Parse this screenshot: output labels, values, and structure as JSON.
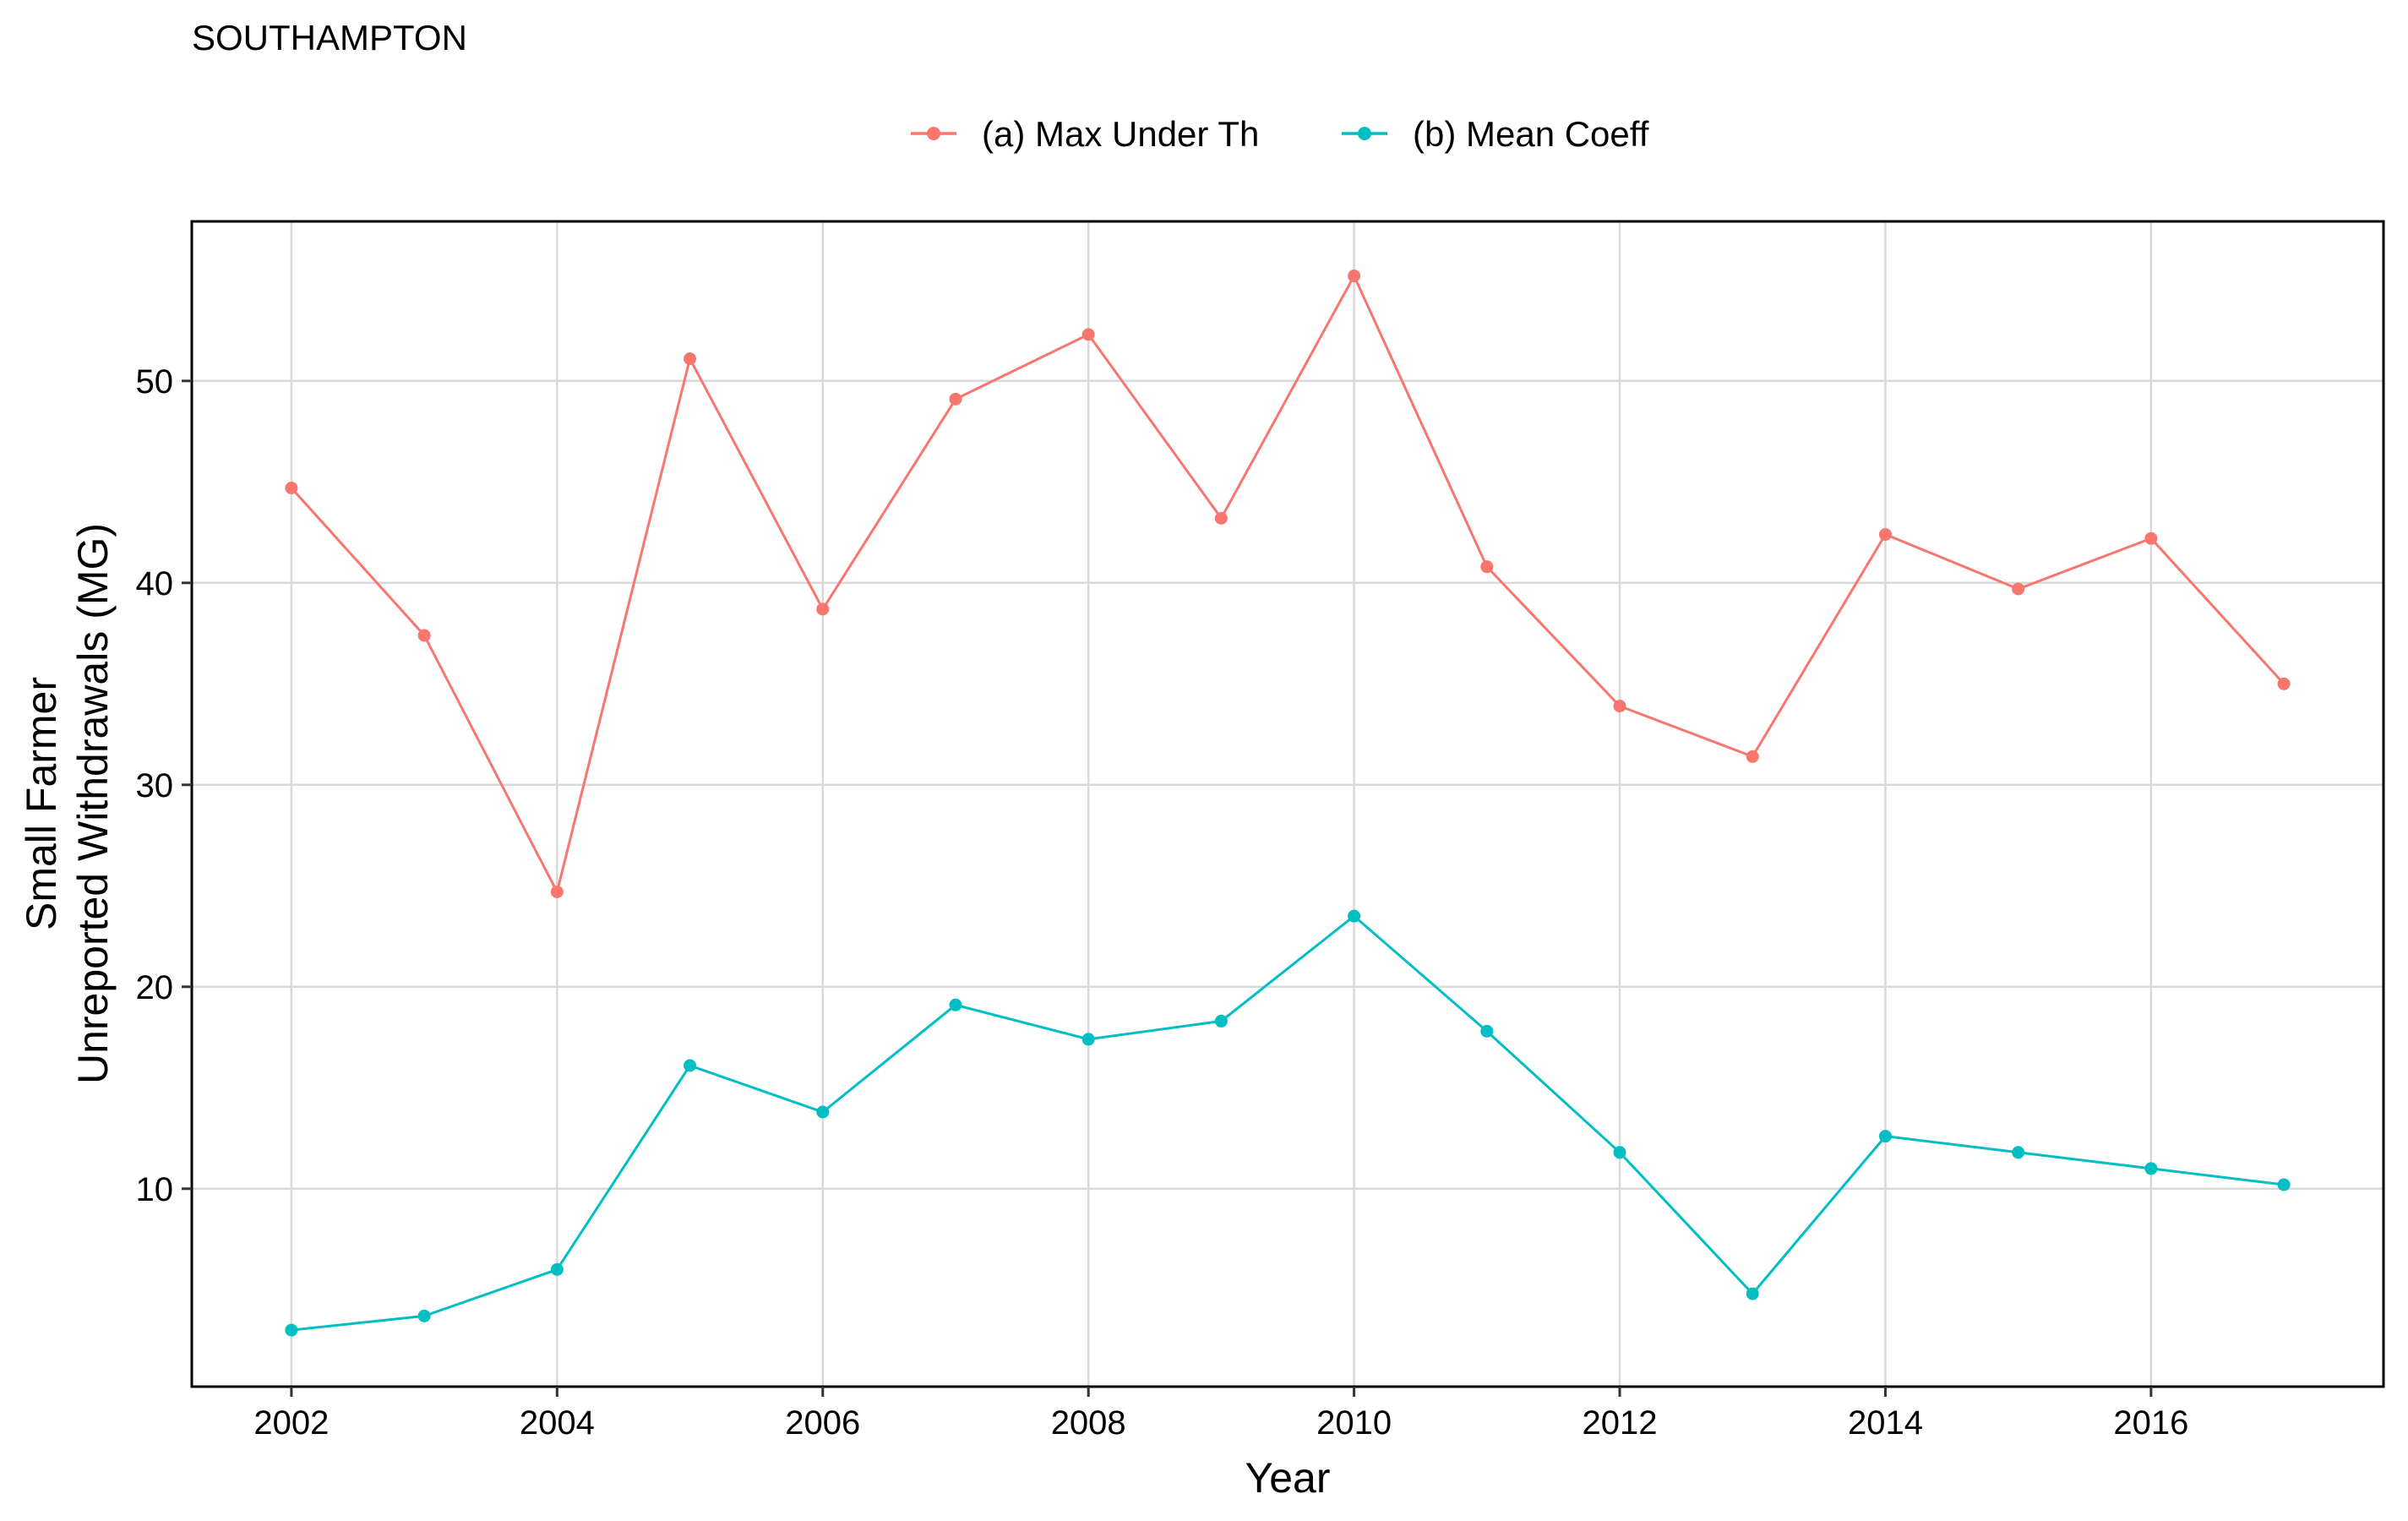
{
  "chart_data": {
    "type": "line",
    "title": "SOUTHAMPTON",
    "xlabel": "Year",
    "ylabel_lines": [
      "Small Farmer",
      "Unreported Withdrawals (MG)"
    ],
    "x": [
      2002,
      2003,
      2004,
      2005,
      2006,
      2007,
      2008,
      2009,
      2010,
      2011,
      2012,
      2013,
      2014,
      2015,
      2016,
      2017
    ],
    "series": [
      {
        "name": "(a) Max Under Th",
        "color": "#F8766D",
        "values": [
          44.7,
          37.4,
          24.7,
          51.1,
          38.7,
          49.1,
          52.3,
          43.2,
          55.2,
          40.8,
          33.9,
          31.4,
          42.4,
          39.7,
          42.2,
          35.0
        ]
      },
      {
        "name": "(b) Mean Coeff",
        "color": "#00BFC4",
        "values": [
          3.0,
          3.7,
          6.0,
          16.1,
          13.8,
          19.1,
          17.4,
          18.3,
          23.5,
          17.8,
          11.8,
          4.8,
          12.6,
          11.8,
          11.0,
          10.2
        ]
      }
    ],
    "xlim": [
      2001.25,
      2017.75
    ],
    "ylim": [
      0.2,
      57.9
    ],
    "xticks": [
      2002,
      2004,
      2006,
      2008,
      2010,
      2012,
      2014,
      2016
    ],
    "yticks": [
      10,
      20,
      30,
      40,
      50
    ],
    "grid": true,
    "legend_position": "top"
  }
}
